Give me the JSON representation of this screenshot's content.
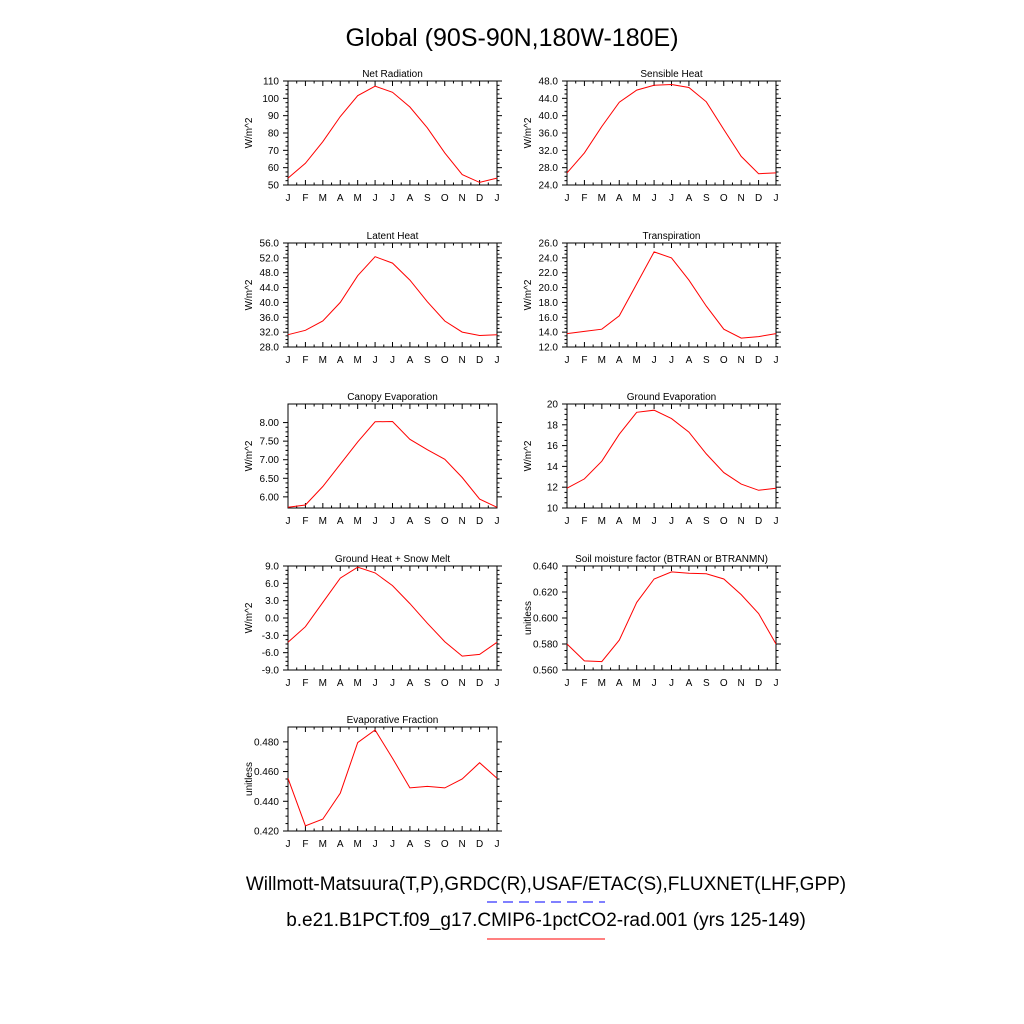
{
  "title": "Global (90S-90N,180W-180E)",
  "series_color": "#ff0000",
  "legend": {
    "line1": "Willmott-Matsuura(T,P),GRDC(R),USAF/ETAC(S),FLUXNET(LHF,GPP)",
    "line1_color": "#0000ff",
    "line1_style": "dashed",
    "line2": "b.e21.B1PCT.f09_g17.CMIP6-1pctCO2-rad.001 (yrs 125-149)",
    "line2_color": "#ff0000",
    "line2_style": "solid"
  },
  "chart_data": [
    {
      "type": "line",
      "title": "Net Radiation",
      "ylabel": "W/m^2",
      "x": [
        "J",
        "F",
        "M",
        "A",
        "M",
        "J",
        "J",
        "A",
        "S",
        "O",
        "N",
        "D",
        "J"
      ],
      "ylim": [
        50,
        110
      ],
      "yticks": [
        50,
        60,
        70,
        80,
        90,
        100,
        110
      ],
      "ytick_labels": [
        "50",
        "60",
        "70",
        "80",
        "90",
        "100",
        "110"
      ],
      "series": [
        {
          "values": [
            54,
            62.5,
            75,
            89.5,
            101.5,
            107,
            103.5,
            95,
            83,
            68.5,
            56,
            51.5,
            54
          ]
        }
      ]
    },
    {
      "type": "line",
      "title": "Sensible Heat",
      "ylabel": "W/m^2",
      "x": [
        "J",
        "F",
        "M",
        "A",
        "M",
        "J",
        "J",
        "A",
        "S",
        "O",
        "N",
        "D",
        "J"
      ],
      "ylim": [
        24,
        48
      ],
      "yticks": [
        24,
        28,
        32,
        36,
        40,
        44,
        48
      ],
      "ytick_labels": [
        "24.0",
        "28.0",
        "32.0",
        "36.0",
        "40.0",
        "44.0",
        "48.0"
      ],
      "series": [
        {
          "values": [
            26.8,
            31.4,
            37.5,
            43.1,
            45.9,
            47.0,
            47.2,
            46.5,
            43.2,
            36.8,
            30.6,
            26.6,
            26.8
          ]
        }
      ]
    },
    {
      "type": "line",
      "title": "Latent Heat",
      "ylabel": "W/m^2",
      "x": [
        "J",
        "F",
        "M",
        "A",
        "M",
        "J",
        "J",
        "A",
        "S",
        "O",
        "N",
        "D",
        "J"
      ],
      "ylim": [
        28,
        56
      ],
      "yticks": [
        28,
        32,
        36,
        40,
        44,
        48,
        52,
        56
      ],
      "ytick_labels": [
        "28.0",
        "32.0",
        "36.0",
        "40.0",
        "44.0",
        "48.0",
        "52.0",
        "56.0"
      ],
      "series": [
        {
          "values": [
            31.3,
            32.5,
            35.0,
            40.0,
            47.2,
            52.3,
            50.6,
            46.0,
            40.2,
            35.0,
            32.0,
            31.1,
            31.3
          ]
        }
      ]
    },
    {
      "type": "line",
      "title": "Transpiration",
      "ylabel": "W/m^2",
      "x": [
        "J",
        "F",
        "M",
        "A",
        "M",
        "J",
        "J",
        "A",
        "S",
        "O",
        "N",
        "D",
        "J"
      ],
      "ylim": [
        12,
        26
      ],
      "yticks": [
        12,
        14,
        16,
        18,
        20,
        22,
        24,
        26
      ],
      "ytick_labels": [
        "12.0",
        "14.0",
        "16.0",
        "18.0",
        "20.0",
        "22.0",
        "24.0",
        "26.0"
      ],
      "series": [
        {
          "values": [
            13.8,
            14.1,
            14.4,
            16.2,
            20.5,
            24.8,
            24.0,
            21.0,
            17.5,
            14.4,
            13.2,
            13.4,
            13.8
          ]
        }
      ]
    },
    {
      "type": "line",
      "title": "Canopy Evaporation",
      "ylabel": "W/m^2",
      "x": [
        "J",
        "F",
        "M",
        "A",
        "M",
        "J",
        "J",
        "A",
        "S",
        "O",
        "N",
        "D",
        "J"
      ],
      "ylim": [
        5.7,
        8.5
      ],
      "yticks": [
        6.0,
        6.5,
        7.0,
        7.5,
        8.0
      ],
      "ytick_labels": [
        "6.00",
        "6.50",
        "7.00",
        "7.50",
        "8.00"
      ],
      "series": [
        {
          "values": [
            5.72,
            5.78,
            6.28,
            6.88,
            7.48,
            8.02,
            8.03,
            7.55,
            7.27,
            7.01,
            6.52,
            5.94,
            5.72
          ]
        }
      ]
    },
    {
      "type": "line",
      "title": "Ground Evaporation",
      "ylabel": "W/m^2",
      "x": [
        "J",
        "F",
        "M",
        "A",
        "M",
        "J",
        "J",
        "A",
        "S",
        "O",
        "N",
        "D",
        "J"
      ],
      "ylim": [
        10,
        20
      ],
      "yticks": [
        10,
        12,
        14,
        16,
        18,
        20
      ],
      "ytick_labels": [
        "10",
        "12",
        "14",
        "16",
        "18",
        "20"
      ],
      "series": [
        {
          "values": [
            11.9,
            12.8,
            14.5,
            17.1,
            19.2,
            19.4,
            18.6,
            17.3,
            15.2,
            13.4,
            12.3,
            11.7,
            11.9
          ]
        }
      ]
    },
    {
      "type": "line",
      "title": "Ground Heat + Snow Melt",
      "ylabel": "W/m^2",
      "x": [
        "J",
        "F",
        "M",
        "A",
        "M",
        "J",
        "J",
        "A",
        "S",
        "O",
        "N",
        "D",
        "J"
      ],
      "ylim": [
        -9,
        9
      ],
      "yticks": [
        -9,
        -6,
        -3,
        0,
        3,
        6,
        9
      ],
      "ytick_labels": [
        "-9.0",
        "-6.0",
        "-3.0",
        "0.0",
        "3.0",
        "6.0",
        "9.0"
      ],
      "series": [
        {
          "values": [
            -4.2,
            -1.5,
            2.7,
            6.9,
            8.8,
            7.8,
            5.6,
            2.5,
            -0.9,
            -4.1,
            -6.6,
            -6.3,
            -4.2
          ]
        }
      ]
    },
    {
      "type": "line",
      "title": "Soil moisture factor (BTRAN or BTRANMN)",
      "ylabel": "unitless",
      "x": [
        "J",
        "F",
        "M",
        "A",
        "M",
        "J",
        "J",
        "A",
        "S",
        "O",
        "N",
        "D",
        "J"
      ],
      "ylim": [
        0.56,
        0.64
      ],
      "yticks": [
        0.56,
        0.58,
        0.6,
        0.62,
        0.64
      ],
      "ytick_labels": [
        "0.560",
        "0.580",
        "0.600",
        "0.620",
        "0.640"
      ],
      "series": [
        {
          "values": [
            0.58,
            0.567,
            0.5665,
            0.583,
            0.612,
            0.63,
            0.6355,
            0.6345,
            0.634,
            0.63,
            0.618,
            0.6035,
            0.58
          ]
        }
      ]
    },
    {
      "type": "line",
      "title": "Evaporative Fraction",
      "ylabel": "unitless",
      "x": [
        "J",
        "F",
        "M",
        "A",
        "M",
        "J",
        "J",
        "A",
        "S",
        "O",
        "N",
        "D",
        "J"
      ],
      "ylim": [
        0.42,
        0.49
      ],
      "yticks": [
        0.42,
        0.44,
        0.46,
        0.48
      ],
      "ytick_labels": [
        "0.420",
        "0.440",
        "0.460",
        "0.480"
      ],
      "series": [
        {
          "values": [
            0.4555,
            0.4235,
            0.428,
            0.4455,
            0.4795,
            0.488,
            0.469,
            0.449,
            0.45,
            0.449,
            0.455,
            0.466,
            0.4555
          ]
        }
      ]
    }
  ]
}
